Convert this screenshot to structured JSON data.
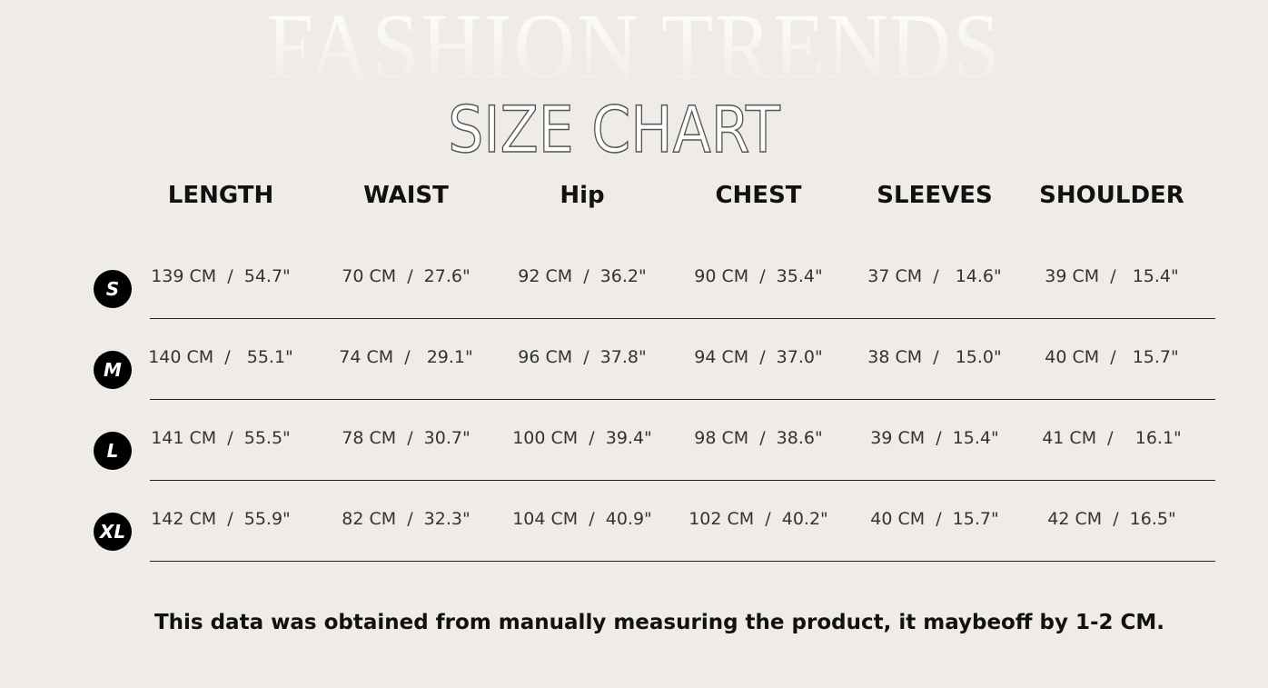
{
  "background_title": "FASHION TRENDS",
  "title": "SIZE CHART",
  "columns": [
    "LENGTH",
    "WAIST",
    "Hip",
    "CHEST",
    "SLEEVES",
    "SHOULDER"
  ],
  "rows": [
    {
      "size": "S",
      "values": [
        "139 CM  /  54.7\"",
        "70 CM  /  27.6\"",
        "92 CM  /  36.2\"",
        "90 CM  /  35.4\"",
        "37 CM  /   14.6\"",
        "39 CM  /   15.4\""
      ]
    },
    {
      "size": "M",
      "values": [
        "140 CM  /   55.1\"",
        "74 CM  /   29.1\"",
        "96 CM  /  37.8\"",
        "94 CM  /  37.0\"",
        "38 CM  /   15.0\"",
        "40 CM  /   15.7\""
      ]
    },
    {
      "size": "L",
      "values": [
        "141 CM  /  55.5\"",
        "78 CM  /  30.7\"",
        "100 CM  /  39.4\"",
        "98 CM  /  38.6\"",
        "39 CM  /  15.4\"",
        "41 CM  /    16.1\""
      ]
    },
    {
      "size": "XL",
      "values": [
        "142 CM  /  55.9\"",
        "82 CM  /  32.3\"",
        "104 CM  /  40.9\"",
        "102 CM  /  40.2\"",
        "40 CM  /  15.7\"",
        "42 CM  /  16.5\""
      ]
    }
  ],
  "footnote": "This data was obtained from manually measuring the product, it maybeoff by 1-2 CM."
}
